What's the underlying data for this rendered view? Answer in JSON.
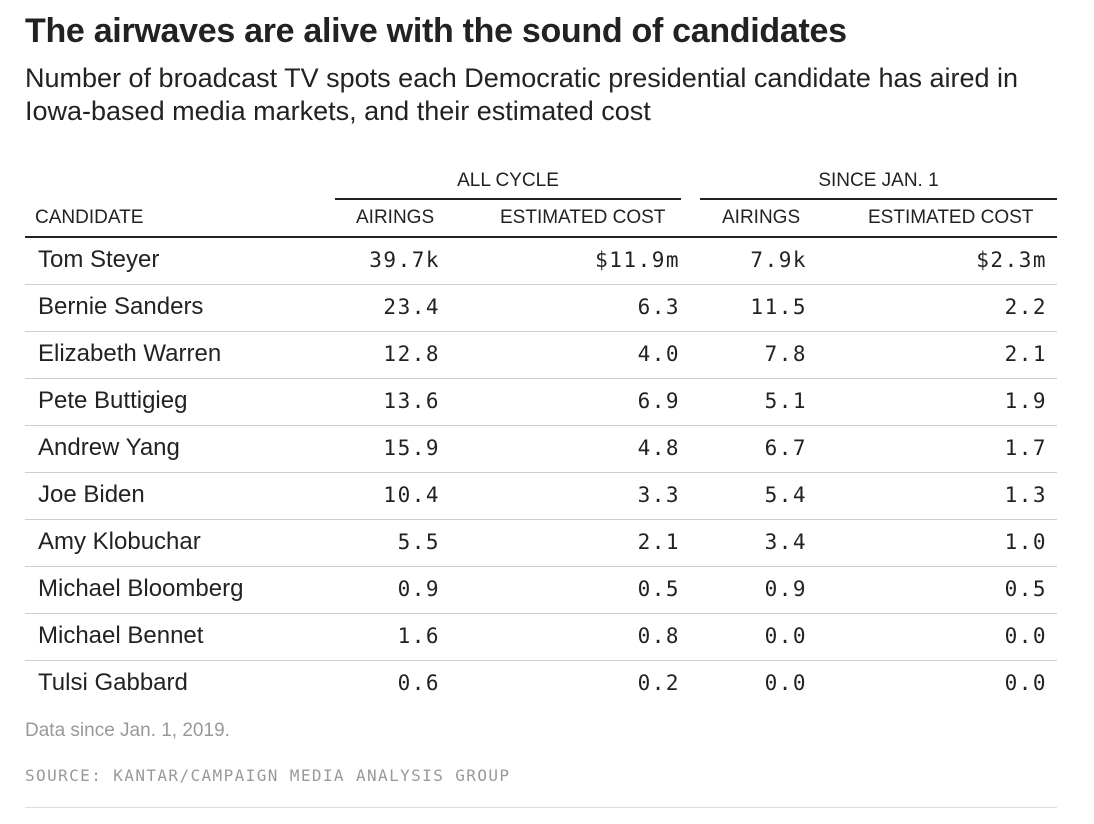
{
  "chart_data": {
    "type": "table",
    "title": "The airwaves are alive with the sound of candidates",
    "subtitle": "Number of broadcast TV spots each Democratic presidential candidate has aired in Iowa-based media markets, and their estimated cost",
    "column_groups": [
      {
        "label": "ALL CYCLE"
      },
      {
        "label": "SINCE JAN. 1"
      }
    ],
    "columns": [
      "CANDIDATE",
      "AIRINGS",
      "ESTIMATED COST",
      "AIRINGS",
      "ESTIMATED COST"
    ],
    "rows": [
      {
        "candidate": "Tom Steyer",
        "all_airings": "39.7k",
        "all_cost": "$11.9m",
        "since_airings": "7.9k",
        "since_cost": "$2.3m"
      },
      {
        "candidate": "Bernie Sanders",
        "all_airings": "23.4",
        "all_cost": "6.3",
        "since_airings": "11.5",
        "since_cost": "2.2"
      },
      {
        "candidate": "Elizabeth Warren",
        "all_airings": "12.8",
        "all_cost": "4.0",
        "since_airings": "7.8",
        "since_cost": "2.1"
      },
      {
        "candidate": "Pete Buttigieg",
        "all_airings": "13.6",
        "all_cost": "6.9",
        "since_airings": "5.1",
        "since_cost": "1.9"
      },
      {
        "candidate": "Andrew Yang",
        "all_airings": "15.9",
        "all_cost": "4.8",
        "since_airings": "6.7",
        "since_cost": "1.7"
      },
      {
        "candidate": "Joe Biden",
        "all_airings": "10.4",
        "all_cost": "3.3",
        "since_airings": "5.4",
        "since_cost": "1.3"
      },
      {
        "candidate": "Amy Klobuchar",
        "all_airings": "5.5",
        "all_cost": "2.1",
        "since_airings": "3.4",
        "since_cost": "1.0"
      },
      {
        "candidate": "Michael Bloomberg",
        "all_airings": "0.9",
        "all_cost": "0.5",
        "since_airings": "0.9",
        "since_cost": "0.5"
      },
      {
        "candidate": "Michael Bennet",
        "all_airings": "1.6",
        "all_cost": "0.8",
        "since_airings": "0.0",
        "since_cost": "0.0"
      },
      {
        "candidate": "Tulsi Gabbard",
        "all_airings": "0.6",
        "all_cost": "0.2",
        "since_airings": "0.0",
        "since_cost": "0.0"
      }
    ],
    "note": "Data since Jan. 1, 2019.",
    "source": "SOURCE: KANTAR/CAMPAIGN MEDIA ANALYSIS GROUP"
  }
}
